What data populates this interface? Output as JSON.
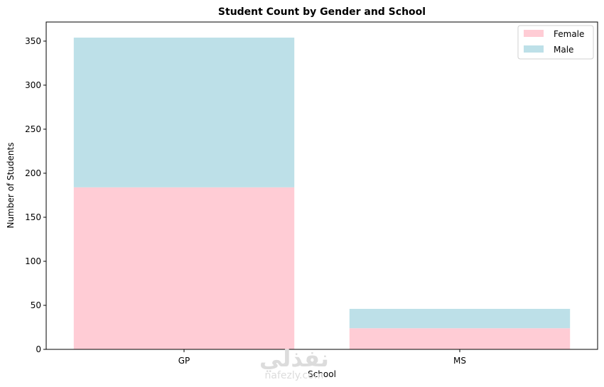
{
  "chart_data": {
    "type": "bar",
    "stacked": true,
    "title": "Student Count by Gender and School",
    "xlabel": "School",
    "ylabel": "Number of Students",
    "categories": [
      "GP",
      "MS"
    ],
    "series": [
      {
        "name": "Female",
        "values": [
          184,
          24
        ],
        "color": "#ffccd5"
      },
      {
        "name": "Male",
        "values": [
          170,
          22
        ],
        "color": "#bde0e8"
      }
    ],
    "ylim": [
      0,
      371.7
    ],
    "yticks": [
      0,
      50,
      100,
      150,
      200,
      250,
      300,
      350
    ],
    "grid": false,
    "legend_position": "top-right"
  },
  "watermark": {
    "logo_text": "نفذلي",
    "site": "nafezly.com"
  }
}
